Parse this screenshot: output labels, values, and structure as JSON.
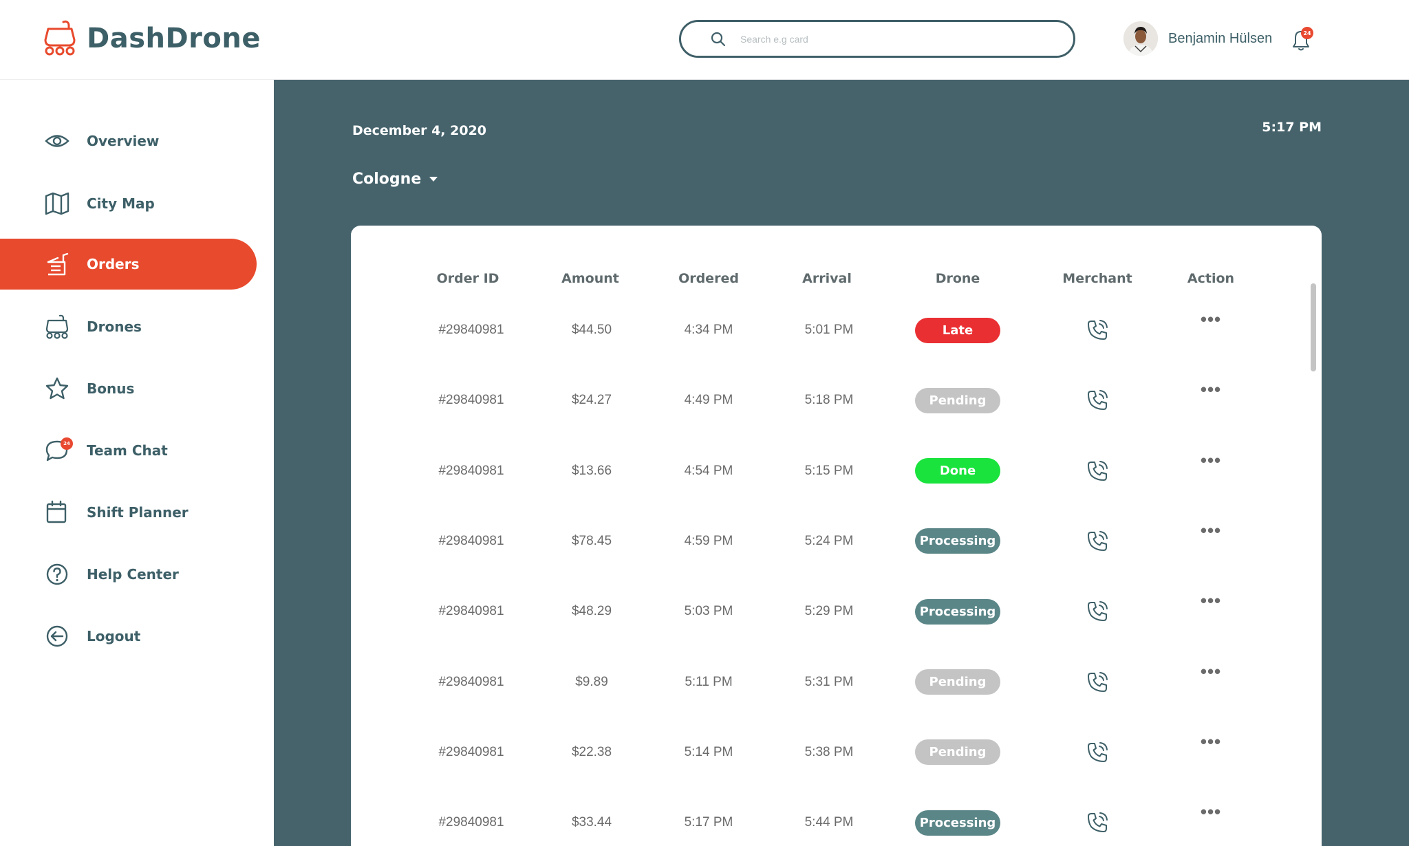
{
  "app": {
    "name": "DashDrone"
  },
  "search": {
    "placeholder": "Search e.g card"
  },
  "user": {
    "name": "Benjamin Hülsen",
    "notifications": "24"
  },
  "sidebar": {
    "items": [
      {
        "label": "Overview",
        "icon": "eye-icon"
      },
      {
        "label": "City Map",
        "icon": "map-icon"
      },
      {
        "label": "Orders",
        "icon": "orders-icon",
        "active": true
      },
      {
        "label": "Drones",
        "icon": "drone-icon"
      },
      {
        "label": "Bonus",
        "icon": "star-icon"
      },
      {
        "label": "Team Chat",
        "icon": "chat-icon",
        "badge": "24"
      },
      {
        "label": "Shift Planner",
        "icon": "calendar-icon"
      },
      {
        "label": "Help Center",
        "icon": "help-icon"
      },
      {
        "label": "Logout",
        "icon": "logout-icon"
      }
    ]
  },
  "main": {
    "date": "December 4, 2020",
    "time": "5:17 PM",
    "city": "Cologne"
  },
  "table": {
    "headers": [
      "Order ID",
      "Amount",
      "Ordered",
      "Arrival",
      "Drone",
      "Merchant",
      "Action"
    ],
    "rows": [
      {
        "id": "#29840981",
        "amount": "$44.50",
        "ordered": "4:34 PM",
        "arrival": "5:01 PM",
        "status": "Late"
      },
      {
        "id": "#29840981",
        "amount": "$24.27",
        "ordered": "4:49 PM",
        "arrival": "5:18 PM",
        "status": "Pending"
      },
      {
        "id": "#29840981",
        "amount": "$13.66",
        "ordered": "4:54 PM",
        "arrival": "5:15 PM",
        "status": "Done"
      },
      {
        "id": "#29840981",
        "amount": "$78.45",
        "ordered": "4:59 PM",
        "arrival": "5:24 PM",
        "status": "Processing"
      },
      {
        "id": "#29840981",
        "amount": "$48.29",
        "ordered": "5:03 PM",
        "arrival": "5:29 PM",
        "status": "Processing"
      },
      {
        "id": "#29840981",
        "amount": "$9.89",
        "ordered": "5:11 PM",
        "arrival": "5:31 PM",
        "status": "Pending"
      },
      {
        "id": "#29840981",
        "amount": "$22.38",
        "ordered": "5:14 PM",
        "arrival": "5:38 PM",
        "status": "Pending"
      },
      {
        "id": "#29840981",
        "amount": "$33.44",
        "ordered": "5:17 PM",
        "arrival": "5:44 PM",
        "status": "Processing"
      }
    ],
    "action_label": "•••"
  },
  "colors": {
    "accent": "#e84a2d",
    "main_bg": "#46636c",
    "text_dark": "#3d5f67",
    "status": {
      "Late": "#ea2f33",
      "Pending": "#c4c4c4",
      "Done": "#19e33c",
      "Processing": "#5b8688"
    }
  }
}
